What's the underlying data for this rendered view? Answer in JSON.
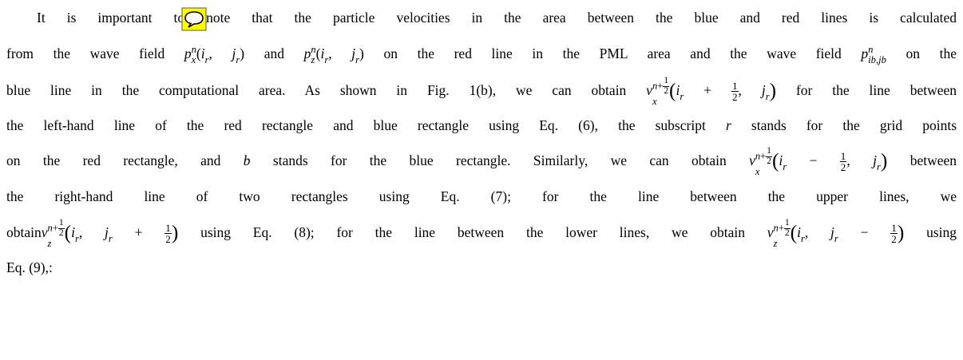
{
  "paragraph": {
    "lines": [
      [
        "It is important to note that the particle velocities in the area between the blue and red lines is calculated"
      ],
      [
        "from the wave field ",
        {
          "m": [
            {
              "it": "p"
            },
            {
              "ss": {
                "sup": [
                  {
                    "it": "n"
                  }
                ],
                "sub": [
                  {
                    "it": "x"
                  }
                ]
              }
            },
            {
              "rm": "("
            },
            {
              "it": "i"
            },
            {
              "ss": {
                "sub": [
                  {
                    "it": "r"
                  }
                ]
              }
            },
            {
              "rm": ", "
            },
            {
              "it": "j"
            },
            {
              "ss": {
                "sub": [
                  {
                    "it": "r"
                  }
                ]
              }
            },
            {
              "rm": ")"
            }
          ]
        },
        " and ",
        {
          "m": [
            {
              "it": "p"
            },
            {
              "ss": {
                "sup": [
                  {
                    "it": "n"
                  }
                ],
                "sub": [
                  {
                    "it": "z"
                  }
                ]
              }
            },
            {
              "rm": "("
            },
            {
              "it": "i"
            },
            {
              "ss": {
                "sub": [
                  {
                    "it": "r"
                  }
                ]
              }
            },
            {
              "rm": ", "
            },
            {
              "it": "j"
            },
            {
              "ss": {
                "sub": [
                  {
                    "it": "r"
                  }
                ]
              }
            },
            {
              "rm": ")"
            }
          ]
        },
        " on the red line in the PML area and the wave field ",
        {
          "m": [
            {
              "it": "p"
            },
            {
              "ss": {
                "sup": [
                  {
                    "it": "n"
                  }
                ],
                "sub": [
                  {
                    "it": "i"
                  },
                  {
                    "it": "b"
                  },
                  {
                    "rm": ","
                  },
                  {
                    "it": "j"
                  },
                  {
                    "it": "b"
                  }
                ]
              }
            }
          ]
        },
        " on the"
      ],
      [
        "blue line in the computational area. As shown in Fig. 1(b), we can obtain ",
        {
          "m": [
            {
              "it": "v"
            },
            {
              "ss": {
                "sup": [
                  {
                    "it": "n"
                  },
                  {
                    "rm": "+"
                  },
                  {
                    "frac": {
                      "num": "1",
                      "den": "2"
                    }
                  }
                ],
                "sub": [
                  {
                    "it": "x"
                  }
                ]
              }
            },
            {
              "big": "("
            },
            {
              "it": "i"
            },
            {
              "ss": {
                "sub": [
                  {
                    "it": "r"
                  }
                ]
              }
            },
            {
              "rm": " + "
            },
            {
              "frac": {
                "num": "1",
                "den": "2"
              }
            },
            {
              "rm": ", "
            },
            {
              "it": "j"
            },
            {
              "ss": {
                "sub": [
                  {
                    "it": "r"
                  }
                ]
              }
            },
            {
              "big": ")"
            }
          ]
        },
        " for the line between"
      ],
      [
        "the left-hand line of the red rectangle and blue rectangle using Eq. (6), the subscript ",
        {
          "m": [
            {
              "it": "r"
            }
          ]
        },
        " stands for the grid points"
      ],
      [
        "on the red rectangle, and ",
        {
          "m": [
            {
              "it": "b"
            }
          ]
        },
        " stands for the blue rectangle. Similarly, we can obtain ",
        {
          "m": [
            {
              "it": "v"
            },
            {
              "ss": {
                "sup": [
                  {
                    "it": "n"
                  },
                  {
                    "rm": "+"
                  },
                  {
                    "frac": {
                      "num": "1",
                      "den": "2"
                    }
                  }
                ],
                "sub": [
                  {
                    "it": "x"
                  }
                ]
              }
            },
            {
              "big": "("
            },
            {
              "it": "i"
            },
            {
              "ss": {
                "sub": [
                  {
                    "it": "r"
                  }
                ]
              }
            },
            {
              "rm": " − "
            },
            {
              "frac": {
                "num": "1",
                "den": "2"
              }
            },
            {
              "rm": ", "
            },
            {
              "it": "j"
            },
            {
              "ss": {
                "sub": [
                  {
                    "it": "r"
                  }
                ]
              }
            },
            {
              "big": ")"
            }
          ]
        },
        " between"
      ],
      [
        "the right-hand line of two rectangles using Eq. (7); for the line between the upper lines, we"
      ],
      [
        "obtain",
        {
          "m": [
            {
              "it": "v"
            },
            {
              "ss": {
                "sup": [
                  {
                    "it": "n"
                  },
                  {
                    "rm": "+"
                  },
                  {
                    "frac": {
                      "num": "1",
                      "den": "2"
                    }
                  }
                ],
                "sub": [
                  {
                    "it": "z"
                  }
                ]
              }
            },
            {
              "big": "("
            },
            {
              "it": "i"
            },
            {
              "ss": {
                "sub": [
                  {
                    "it": "r"
                  }
                ]
              }
            },
            {
              "rm": ", "
            },
            {
              "it": "j"
            },
            {
              "ss": {
                "sub": [
                  {
                    "it": "r"
                  }
                ]
              }
            },
            {
              "rm": " + "
            },
            {
              "frac": {
                "num": "1",
                "den": "2"
              }
            },
            {
              "big": ")"
            }
          ]
        },
        " using Eq. (8); for the line between the lower lines, we obtain ",
        {
          "m": [
            {
              "it": "v"
            },
            {
              "ss": {
                "sup": [
                  {
                    "it": "n"
                  },
                  {
                    "rm": "+"
                  },
                  {
                    "frac": {
                      "num": "1",
                      "den": "2"
                    }
                  }
                ],
                "sub": [
                  {
                    "it": "z"
                  }
                ]
              }
            },
            {
              "big": "("
            },
            {
              "it": "i"
            },
            {
              "ss": {
                "sub": [
                  {
                    "it": "r"
                  }
                ]
              }
            },
            {
              "rm": ", "
            },
            {
              "it": "j"
            },
            {
              "ss": {
                "sub": [
                  {
                    "it": "r"
                  }
                ]
              }
            },
            {
              "rm": " − "
            },
            {
              "frac": {
                "num": "1",
                "den": "2"
              }
            },
            {
              "big": ")"
            }
          ]
        },
        " using"
      ],
      [
        "Eq. (9),:"
      ]
    ]
  }
}
